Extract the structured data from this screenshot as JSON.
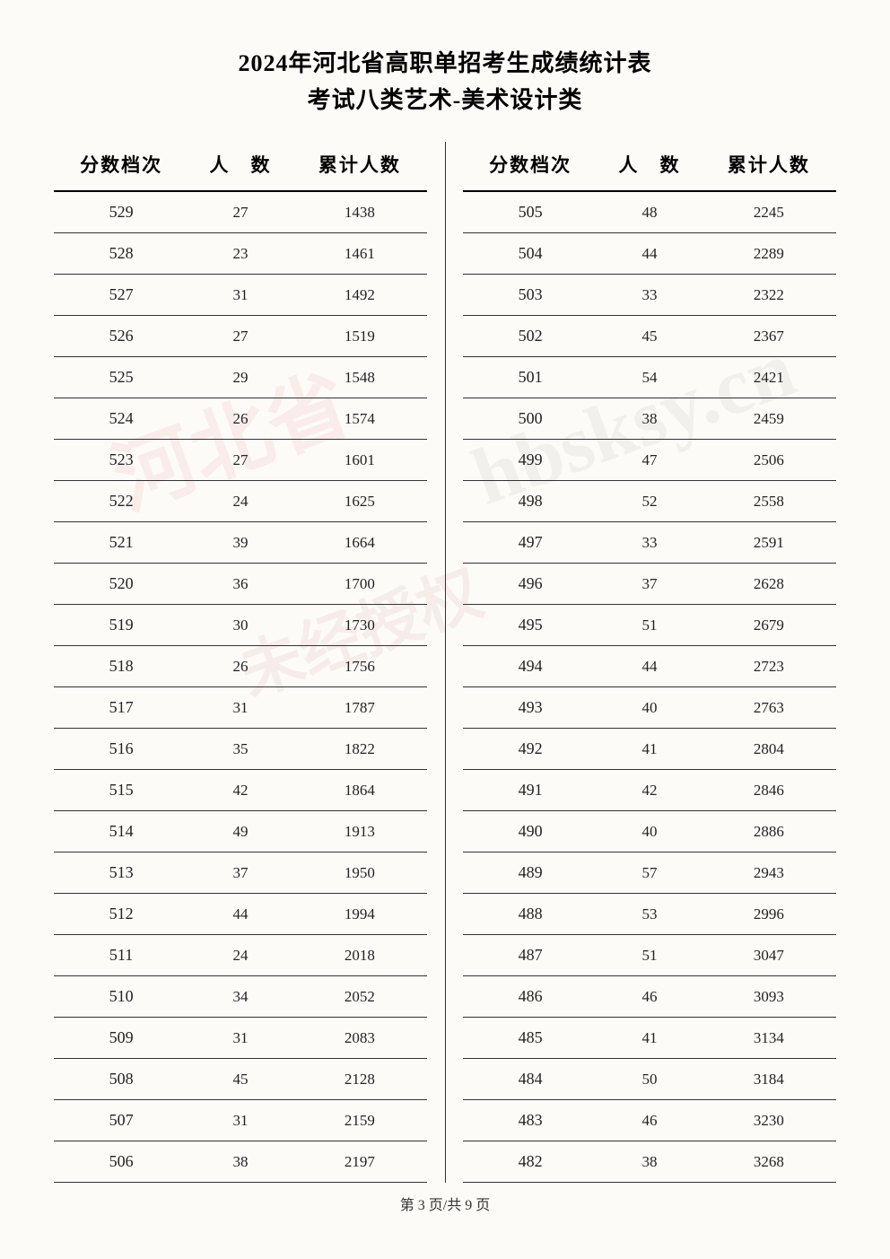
{
  "title": {
    "line1": "2024年河北省高职单招考生成绩统计表",
    "line2": "考试八类艺术-美术设计类"
  },
  "headers": {
    "score": "分数档次",
    "count": "人　数",
    "cumulative": "累计人数"
  },
  "left_table": {
    "rows": [
      {
        "score": "529",
        "count": "27",
        "cum": "1438"
      },
      {
        "score": "528",
        "count": "23",
        "cum": "1461"
      },
      {
        "score": "527",
        "count": "31",
        "cum": "1492"
      },
      {
        "score": "526",
        "count": "27",
        "cum": "1519"
      },
      {
        "score": "525",
        "count": "29",
        "cum": "1548"
      },
      {
        "score": "524",
        "count": "26",
        "cum": "1574"
      },
      {
        "score": "523",
        "count": "27",
        "cum": "1601"
      },
      {
        "score": "522",
        "count": "24",
        "cum": "1625"
      },
      {
        "score": "521",
        "count": "39",
        "cum": "1664"
      },
      {
        "score": "520",
        "count": "36",
        "cum": "1700"
      },
      {
        "score": "519",
        "count": "30",
        "cum": "1730"
      },
      {
        "score": "518",
        "count": "26",
        "cum": "1756"
      },
      {
        "score": "517",
        "count": "31",
        "cum": "1787"
      },
      {
        "score": "516",
        "count": "35",
        "cum": "1822"
      },
      {
        "score": "515",
        "count": "42",
        "cum": "1864"
      },
      {
        "score": "514",
        "count": "49",
        "cum": "1913"
      },
      {
        "score": "513",
        "count": "37",
        "cum": "1950"
      },
      {
        "score": "512",
        "count": "44",
        "cum": "1994"
      },
      {
        "score": "511",
        "count": "24",
        "cum": "2018"
      },
      {
        "score": "510",
        "count": "34",
        "cum": "2052"
      },
      {
        "score": "509",
        "count": "31",
        "cum": "2083"
      },
      {
        "score": "508",
        "count": "45",
        "cum": "2128"
      },
      {
        "score": "507",
        "count": "31",
        "cum": "2159"
      },
      {
        "score": "506",
        "count": "38",
        "cum": "2197"
      }
    ]
  },
  "right_table": {
    "rows": [
      {
        "score": "505",
        "count": "48",
        "cum": "2245"
      },
      {
        "score": "504",
        "count": "44",
        "cum": "2289"
      },
      {
        "score": "503",
        "count": "33",
        "cum": "2322"
      },
      {
        "score": "502",
        "count": "45",
        "cum": "2367"
      },
      {
        "score": "501",
        "count": "54",
        "cum": "2421"
      },
      {
        "score": "500",
        "count": "38",
        "cum": "2459"
      },
      {
        "score": "499",
        "count": "47",
        "cum": "2506"
      },
      {
        "score": "498",
        "count": "52",
        "cum": "2558"
      },
      {
        "score": "497",
        "count": "33",
        "cum": "2591"
      },
      {
        "score": "496",
        "count": "37",
        "cum": "2628"
      },
      {
        "score": "495",
        "count": "51",
        "cum": "2679"
      },
      {
        "score": "494",
        "count": "44",
        "cum": "2723"
      },
      {
        "score": "493",
        "count": "40",
        "cum": "2763"
      },
      {
        "score": "492",
        "count": "41",
        "cum": "2804"
      },
      {
        "score": "491",
        "count": "42",
        "cum": "2846"
      },
      {
        "score": "490",
        "count": "40",
        "cum": "2886"
      },
      {
        "score": "489",
        "count": "57",
        "cum": "2943"
      },
      {
        "score": "488",
        "count": "53",
        "cum": "2996"
      },
      {
        "score": "487",
        "count": "51",
        "cum": "3047"
      },
      {
        "score": "486",
        "count": "46",
        "cum": "3093"
      },
      {
        "score": "485",
        "count": "41",
        "cum": "3134"
      },
      {
        "score": "484",
        "count": "50",
        "cum": "3184"
      },
      {
        "score": "483",
        "count": "46",
        "cum": "3230"
      },
      {
        "score": "482",
        "count": "38",
        "cum": "3268"
      }
    ]
  },
  "footer": {
    "text": "第 3 页/共 9 页"
  },
  "styles": {
    "background_color": "#fdfbf8",
    "text_color": "#000000",
    "row_border_color": "#333333",
    "title_fontsize": 26,
    "header_fontsize": 21,
    "cell_fontsize": 17
  }
}
